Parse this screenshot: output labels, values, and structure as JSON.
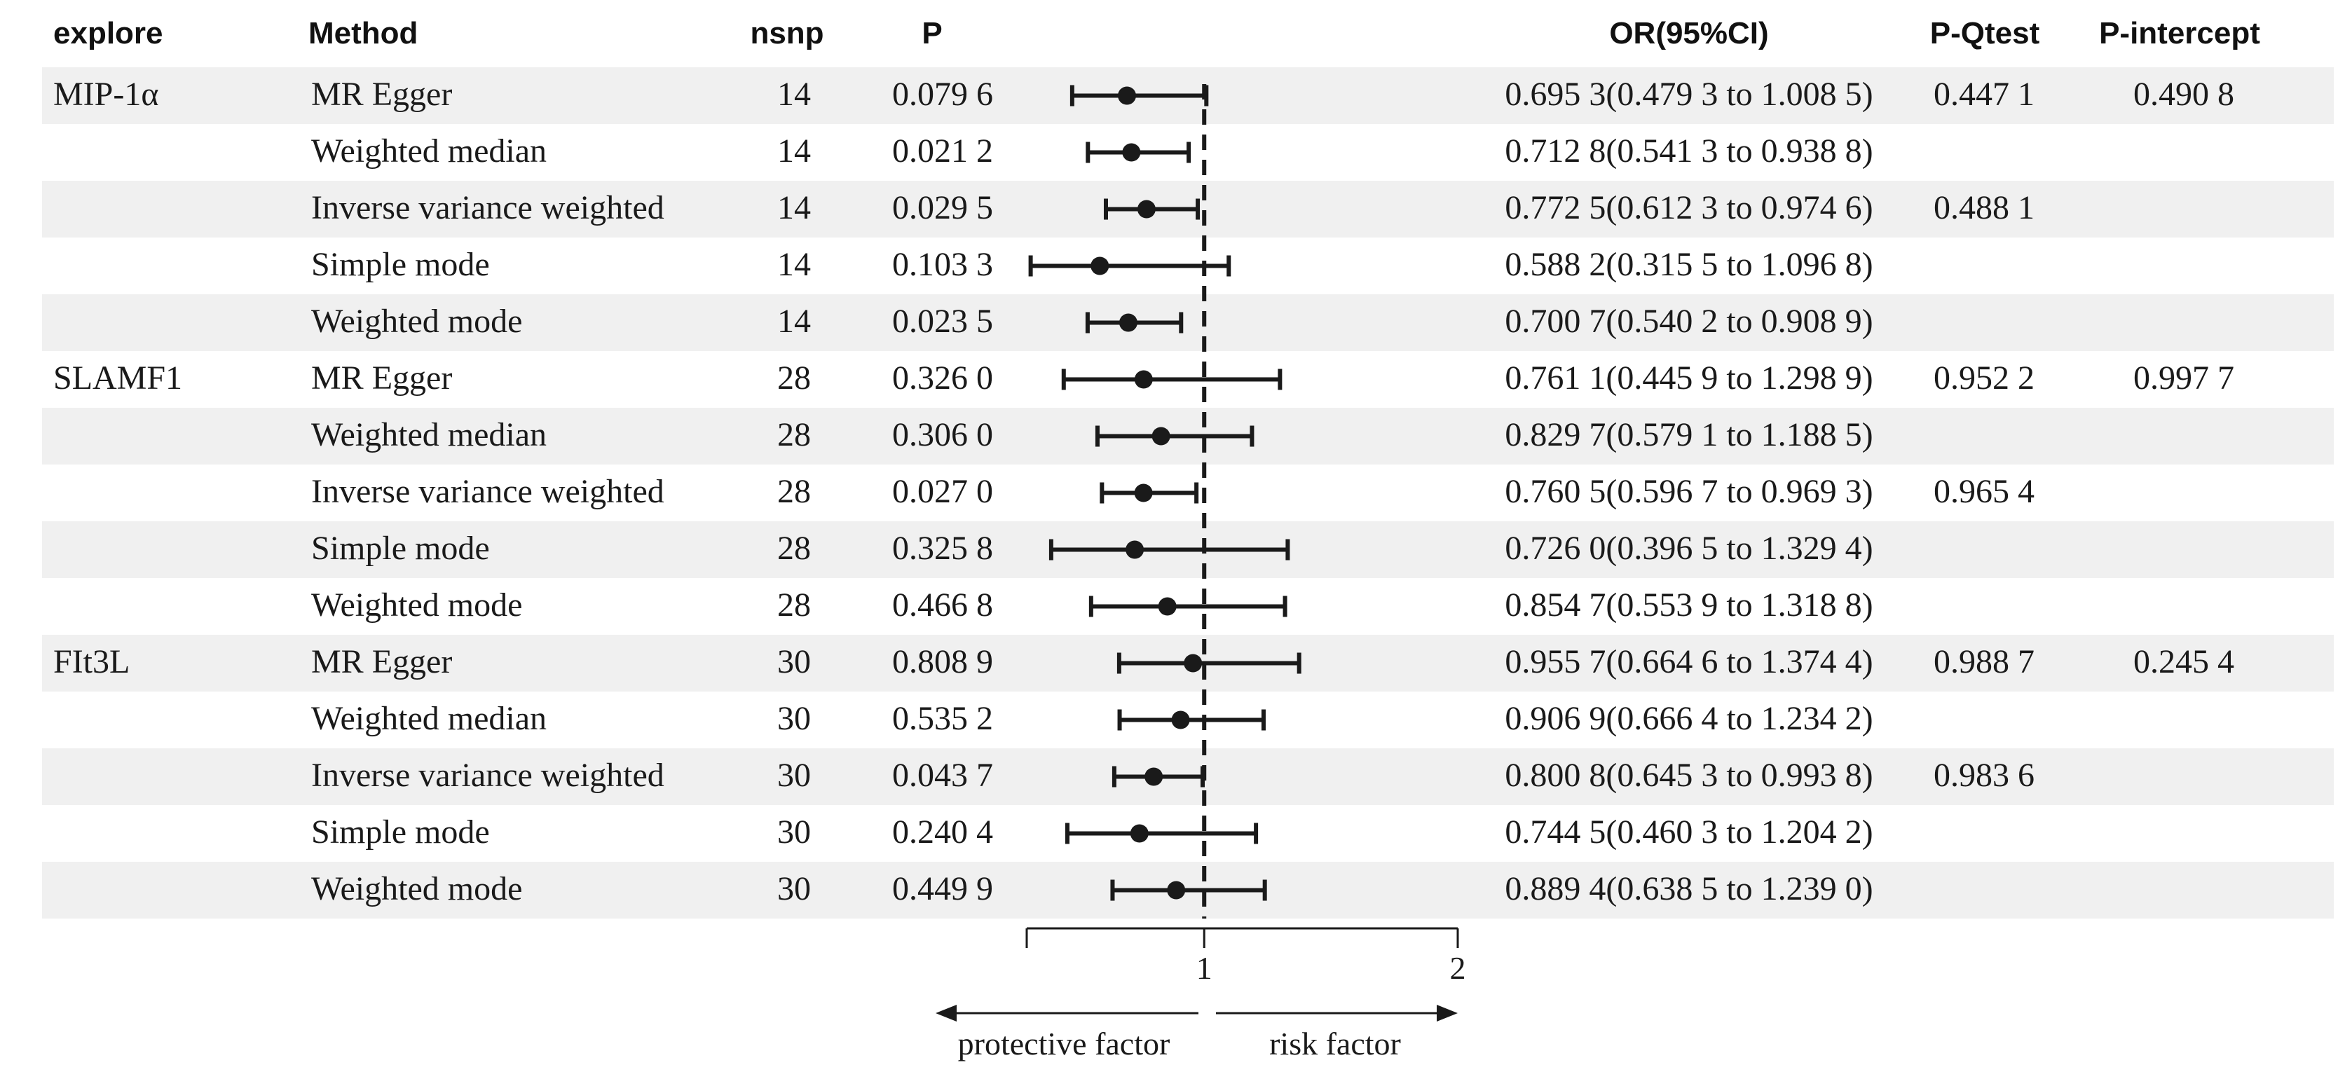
{
  "chart_data": {
    "type": "forest",
    "headers": {
      "explore": "explore",
      "method": "Method",
      "nsnp": "nsnp",
      "p": "P",
      "or": "OR(95%CI)",
      "pq": "P-Qtest",
      "pi": "P-intercept"
    },
    "rows": [
      {
        "explore": "MIP-1α",
        "method": "MR Egger",
        "nsnp": "14",
        "p": "0.079 6",
        "or_text": "0.695 3(0.479 3 to 1.008 5)",
        "pq": "0.447 1",
        "pi": "0.490 8",
        "or": 0.6953,
        "lo": 0.4793,
        "hi": 1.0085
      },
      {
        "explore": "",
        "method": "Weighted median",
        "nsnp": "14",
        "p": "0.021 2",
        "or_text": "0.712 8(0.541 3 to 0.938 8)",
        "pq": "",
        "pi": "",
        "or": 0.7128,
        "lo": 0.5413,
        "hi": 0.9388
      },
      {
        "explore": "",
        "method": "Inverse variance weighted",
        "nsnp": "14",
        "p": "0.029 5",
        "or_text": "0.772 5(0.612 3 to 0.974 6)",
        "pq": "0.488 1",
        "pi": "",
        "or": 0.7725,
        "lo": 0.6123,
        "hi": 0.9746
      },
      {
        "explore": "",
        "method": "Simple mode",
        "nsnp": "14",
        "p": "0.103 3",
        "or_text": "0.588 2(0.315 5 to 1.096 8)",
        "pq": "",
        "pi": "",
        "or": 0.5882,
        "lo": 0.3155,
        "hi": 1.0968
      },
      {
        "explore": "",
        "method": "Weighted mode",
        "nsnp": "14",
        "p": "0.023 5",
        "or_text": "0.700 7(0.540 2 to 0.908 9)",
        "pq": "",
        "pi": "",
        "or": 0.7007,
        "lo": 0.5402,
        "hi": 0.9089
      },
      {
        "explore": "SLAMF1",
        "method": "MR Egger",
        "nsnp": "28",
        "p": "0.326 0",
        "or_text": "0.761 1(0.445 9 to 1.298 9)",
        "pq": "0.952 2",
        "pi": "0.997 7",
        "or": 0.7611,
        "lo": 0.4459,
        "hi": 1.2989
      },
      {
        "explore": "",
        "method": "Weighted median",
        "nsnp": "28",
        "p": "0.306 0",
        "or_text": "0.829 7(0.579 1 to 1.188 5)",
        "pq": "",
        "pi": "",
        "or": 0.8297,
        "lo": 0.5791,
        "hi": 1.1885
      },
      {
        "explore": "",
        "method": "Inverse variance weighted",
        "nsnp": "28",
        "p": "0.027 0",
        "or_text": "0.760 5(0.596 7 to 0.969 3)",
        "pq": "0.965 4",
        "pi": "",
        "or": 0.7605,
        "lo": 0.5967,
        "hi": 0.9693
      },
      {
        "explore": "",
        "method": "Simple mode",
        "nsnp": "28",
        "p": "0.325 8",
        "or_text": "0.726 0(0.396 5 to 1.329 4)",
        "pq": "",
        "pi": "",
        "or": 0.726,
        "lo": 0.3965,
        "hi": 1.3294
      },
      {
        "explore": "",
        "method": "Weighted mode",
        "nsnp": "28",
        "p": "0.466 8",
        "or_text": "0.854 7(0.553 9 to 1.318 8)",
        "pq": "",
        "pi": "",
        "or": 0.8547,
        "lo": 0.5539,
        "hi": 1.3188
      },
      {
        "explore": "FIt3L",
        "method": "MR Egger",
        "nsnp": "30",
        "p": "0.808 9",
        "or_text": "0.955 7(0.664 6 to 1.374 4)",
        "pq": "0.988 7",
        "pi": "0.245 4",
        "or": 0.9557,
        "lo": 0.6646,
        "hi": 1.3744
      },
      {
        "explore": "",
        "method": "Weighted median",
        "nsnp": "30",
        "p": "0.535 2",
        "or_text": "0.906 9(0.666 4 to 1.234 2)",
        "pq": "",
        "pi": "",
        "or": 0.9069,
        "lo": 0.6664,
        "hi": 1.2342
      },
      {
        "explore": "",
        "method": "Inverse variance weighted",
        "nsnp": "30",
        "p": "0.043 7",
        "or_text": "0.800 8(0.645 3 to 0.993 8)",
        "pq": "0.983 6",
        "pi": "",
        "or": 0.8008,
        "lo": 0.6453,
        "hi": 0.9938
      },
      {
        "explore": "",
        "method": "Simple mode",
        "nsnp": "30",
        "p": "0.240 4",
        "or_text": "0.744 5(0.460 3 to 1.204 2)",
        "pq": "",
        "pi": "",
        "or": 0.7445,
        "lo": 0.4603,
        "hi": 1.2042
      },
      {
        "explore": "",
        "method": "Weighted mode",
        "nsnp": "30",
        "p": "0.449 9",
        "or_text": "0.889 4(0.638 5 to 1.239 0)",
        "pq": "",
        "pi": "",
        "or": 0.8894,
        "lo": 0.6385,
        "hi": 1.239
      }
    ],
    "x_axis": {
      "min": 0.3,
      "max": 2,
      "ticks": [
        1,
        2
      ],
      "tick_labels": [
        "1",
        "2"
      ],
      "reference": 1
    },
    "annotations": {
      "left": "protective factor",
      "right": "risk factor"
    },
    "colors": {
      "band": "#f0f0f0",
      "ink": "#1a1a1a"
    }
  }
}
